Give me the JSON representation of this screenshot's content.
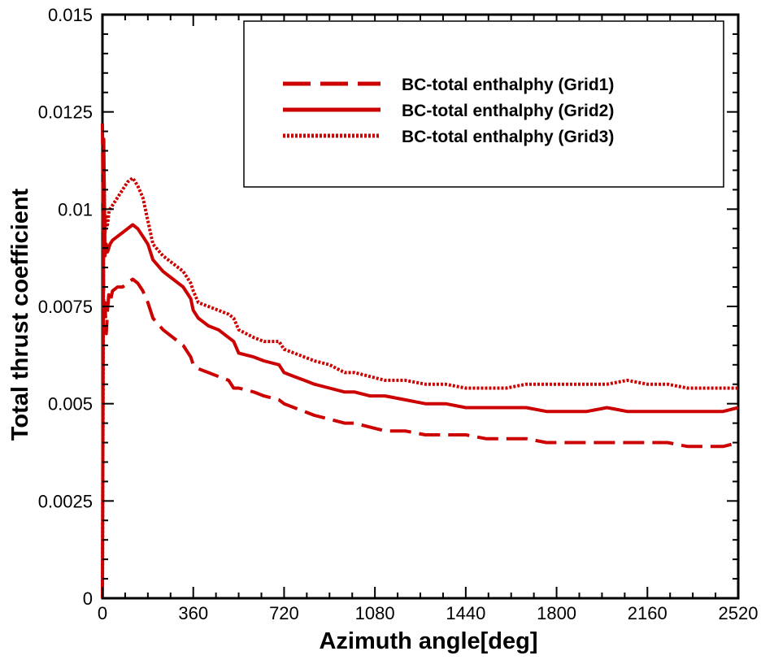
{
  "chart_data": {
    "type": "line",
    "title": "",
    "xlabel": "Azimuth angle[deg]",
    "ylabel": "Total thrust coefficient",
    "xlim": [
      0,
      2520
    ],
    "ylim": [
      0,
      0.015
    ],
    "x_ticks": [
      0,
      360,
      720,
      1080,
      1440,
      1800,
      2160,
      2520
    ],
    "x_tick_labels": [
      "0",
      "360",
      "720",
      "1080",
      "1440",
      "1800",
      "2160",
      "2520"
    ],
    "y_ticks": [
      0,
      0.0025,
      0.005,
      0.0075,
      0.01,
      0.0125,
      0.015
    ],
    "y_tick_labels": [
      "0",
      "0.0025",
      "0.005",
      "0.0075",
      "0.01",
      "0.0125",
      "0.015"
    ],
    "grid": false,
    "legend_position": "top-right",
    "series": [
      {
        "name": "BC-total enthalphy (Grid1)",
        "style": "dashed",
        "color": "#cc0000",
        "x": [
          0,
          5,
          10,
          15,
          20,
          25,
          30,
          40,
          60,
          80,
          100,
          120,
          140,
          160,
          180,
          200,
          240,
          280,
          320,
          350,
          360,
          380,
          420,
          460,
          500,
          520,
          540,
          600,
          640,
          700,
          720,
          760,
          800,
          840,
          900,
          960,
          1000,
          1060,
          1120,
          1200,
          1280,
          1360,
          1440,
          1520,
          1600,
          1680,
          1760,
          1840,
          1920,
          2000,
          2080,
          2160,
          2240,
          2320,
          2400,
          2460,
          2520
        ],
        "y": [
          0.0122,
          0.0072,
          0.0076,
          0.0068,
          0.0074,
          0.0078,
          0.0076,
          0.0079,
          0.008,
          0.008,
          0.0081,
          0.0082,
          0.0081,
          0.0079,
          0.0076,
          0.0072,
          0.0069,
          0.0067,
          0.0065,
          0.0062,
          0.006,
          0.0059,
          0.0058,
          0.0057,
          0.0056,
          0.0054,
          0.0054,
          0.0053,
          0.0052,
          0.0051,
          0.005,
          0.0049,
          0.0048,
          0.0047,
          0.0046,
          0.0045,
          0.0045,
          0.0044,
          0.0043,
          0.0043,
          0.0042,
          0.0042,
          0.0042,
          0.0041,
          0.0041,
          0.0041,
          0.004,
          0.004,
          0.004,
          0.004,
          0.004,
          0.004,
          0.004,
          0.0039,
          0.0039,
          0.0039,
          0.004
        ]
      },
      {
        "name": "BC-total enthalphy (Grid2)",
        "style": "solid",
        "color": "#cc0000",
        "x": [
          0,
          5,
          10,
          15,
          20,
          25,
          30,
          40,
          60,
          80,
          100,
          120,
          140,
          160,
          180,
          200,
          240,
          280,
          320,
          350,
          360,
          380,
          420,
          460,
          500,
          520,
          540,
          600,
          640,
          700,
          720,
          760,
          800,
          840,
          900,
          960,
          1000,
          1060,
          1120,
          1200,
          1280,
          1360,
          1440,
          1520,
          1600,
          1680,
          1760,
          1840,
          1920,
          2000,
          2080,
          2160,
          2240,
          2320,
          2400,
          2460,
          2520
        ],
        "y": [
          0.0,
          0.0118,
          0.0088,
          0.0091,
          0.0089,
          0.009,
          0.0091,
          0.0092,
          0.0093,
          0.0094,
          0.0095,
          0.0096,
          0.0095,
          0.0093,
          0.0091,
          0.0087,
          0.0084,
          0.0082,
          0.008,
          0.0077,
          0.0074,
          0.0072,
          0.007,
          0.0069,
          0.0067,
          0.0066,
          0.0063,
          0.0062,
          0.0061,
          0.006,
          0.0058,
          0.0057,
          0.0056,
          0.0055,
          0.0054,
          0.0053,
          0.0053,
          0.0052,
          0.0052,
          0.0051,
          0.005,
          0.005,
          0.0049,
          0.0049,
          0.0049,
          0.0049,
          0.0048,
          0.0048,
          0.0048,
          0.0049,
          0.0048,
          0.0048,
          0.0048,
          0.0048,
          0.0048,
          0.0048,
          0.0049
        ]
      },
      {
        "name": "BC-total enthalphy (Grid3)",
        "style": "dotted",
        "color": "#cc0000",
        "x": [
          0,
          5,
          10,
          15,
          20,
          25,
          30,
          40,
          60,
          80,
          100,
          120,
          140,
          160,
          180,
          200,
          240,
          280,
          320,
          350,
          360,
          380,
          420,
          460,
          500,
          520,
          540,
          600,
          640,
          700,
          720,
          760,
          800,
          840,
          900,
          960,
          1000,
          1060,
          1120,
          1200,
          1280,
          1360,
          1440,
          1520,
          1600,
          1680,
          1760,
          1840,
          1920,
          2000,
          2080,
          2160,
          2240,
          2320,
          2400,
          2460,
          2520
        ],
        "y": [
          0.0,
          0.0112,
          0.0094,
          0.0098,
          0.0096,
          0.0099,
          0.01,
          0.0101,
          0.0103,
          0.0105,
          0.0107,
          0.0108,
          0.0106,
          0.0103,
          0.0097,
          0.0091,
          0.0088,
          0.0086,
          0.0084,
          0.0081,
          0.0079,
          0.0076,
          0.0075,
          0.0074,
          0.0073,
          0.0072,
          0.0069,
          0.0067,
          0.0066,
          0.0066,
          0.0064,
          0.0063,
          0.0062,
          0.0061,
          0.006,
          0.0058,
          0.0058,
          0.0057,
          0.0056,
          0.0056,
          0.0055,
          0.0055,
          0.0054,
          0.0054,
          0.0054,
          0.0055,
          0.0055,
          0.0055,
          0.0055,
          0.0055,
          0.0056,
          0.0055,
          0.0055,
          0.0054,
          0.0054,
          0.0054,
          0.0054
        ]
      }
    ]
  }
}
